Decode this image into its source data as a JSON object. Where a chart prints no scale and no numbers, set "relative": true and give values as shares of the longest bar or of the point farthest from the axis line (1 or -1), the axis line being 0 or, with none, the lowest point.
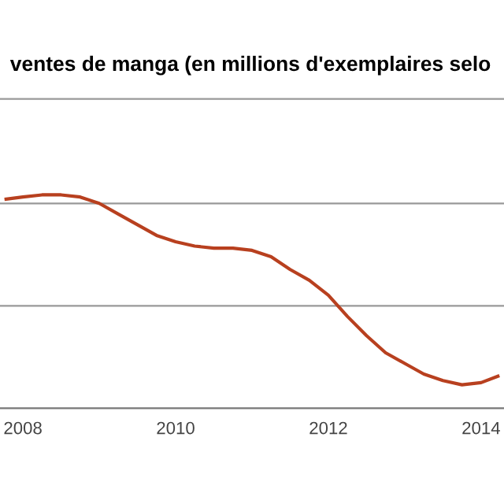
{
  "chart_data": {
    "type": "line",
    "title": "ventes de manga (en millions d'exemplaires selo",
    "relative": true,
    "x": [
      2007.78,
      2008,
      2008.25,
      2008.5,
      2008.75,
      2009,
      2009.25,
      2009.5,
      2009.75,
      2010,
      2010.25,
      2010.5,
      2010.75,
      2011,
      2011.25,
      2011.5,
      2011.75,
      2012,
      2012.25,
      2012.5,
      2012.75,
      2013,
      2013.25,
      2013.5,
      2013.75,
      2014,
      2014.22
    ],
    "series": [
      {
        "color": "#b8401f",
        "values": [
          0.98,
          0.99,
          1.0,
          1.0,
          0.99,
          0.96,
          0.91,
          0.86,
          0.81,
          0.78,
          0.76,
          0.75,
          0.75,
          0.74,
          0.71,
          0.65,
          0.6,
          0.53,
          0.43,
          0.34,
          0.26,
          0.21,
          0.16,
          0.13,
          0.11,
          0.12,
          0.15
        ]
      }
    ],
    "ref_lines": [
      {
        "axis": "y",
        "value": 0.48,
        "color": "#999999"
      },
      {
        "axis": "y",
        "value": 0.96,
        "color": "#999999"
      },
      {
        "axis": "y",
        "value": 1.45,
        "color": "#999999"
      }
    ],
    "xlim": [
      2007.7,
      2014.3
    ],
    "xticks": [
      2008,
      2010,
      2012,
      2014
    ],
    "line_style": "solid"
  }
}
